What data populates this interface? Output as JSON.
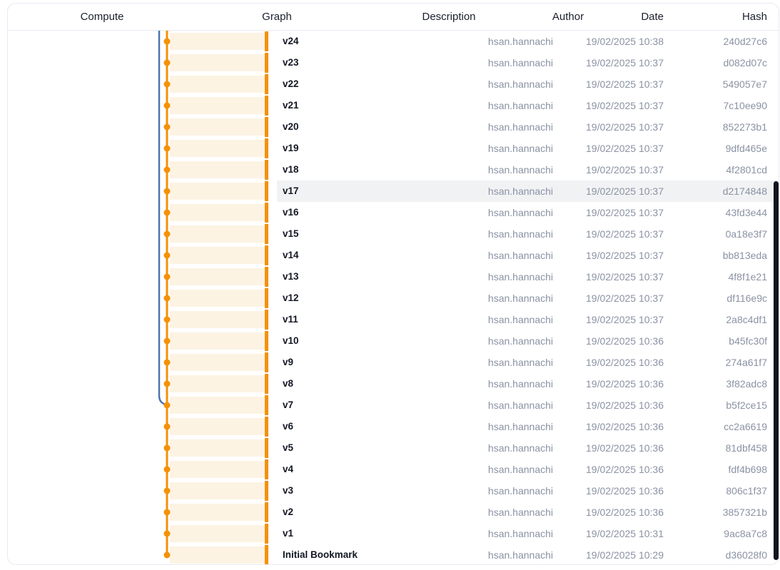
{
  "colors": {
    "orange": "#F59105",
    "cream": "#FCF3E3",
    "blue": "#4E74AE",
    "border": "#E9EAF3",
    "muted": "#8A92A3",
    "highlight": "#F1F2F4",
    "scrollbar": "#10151F"
  },
  "header": {
    "compute": "Compute",
    "graph": "Graph",
    "description": "Description",
    "author": "Author",
    "date": "Date",
    "hash": "Hash"
  },
  "graph_meta": {
    "trunk_color": "orange",
    "second_branch": {
      "starts_at_top": true,
      "merges_at_row": "v7"
    }
  },
  "rows": [
    {
      "label": "v24",
      "description": "",
      "author": "hsan.hannachi",
      "date": "19/02/2025 10:38",
      "hash": "240d27c6",
      "highlighted": false
    },
    {
      "label": "v23",
      "description": "",
      "author": "hsan.hannachi",
      "date": "19/02/2025 10:37",
      "hash": "d082d07c",
      "highlighted": false
    },
    {
      "label": "v22",
      "description": "",
      "author": "hsan.hannachi",
      "date": "19/02/2025 10:37",
      "hash": "549057e7",
      "highlighted": false
    },
    {
      "label": "v21",
      "description": "",
      "author": "hsan.hannachi",
      "date": "19/02/2025 10:37",
      "hash": "7c10ee90",
      "highlighted": false
    },
    {
      "label": "v20",
      "description": "",
      "author": "hsan.hannachi",
      "date": "19/02/2025 10:37",
      "hash": "852273b1",
      "highlighted": false
    },
    {
      "label": "v19",
      "description": "",
      "author": "hsan.hannachi",
      "date": "19/02/2025 10:37",
      "hash": "9dfd465e",
      "highlighted": false
    },
    {
      "label": "v18",
      "description": "",
      "author": "hsan.hannachi",
      "date": "19/02/2025 10:37",
      "hash": "4f2801cd",
      "highlighted": false
    },
    {
      "label": "v17",
      "description": "",
      "author": "hsan.hannachi",
      "date": "19/02/2025 10:37",
      "hash": "d2174848",
      "highlighted": true
    },
    {
      "label": "v16",
      "description": "",
      "author": "hsan.hannachi",
      "date": "19/02/2025 10:37",
      "hash": "43fd3e44",
      "highlighted": false
    },
    {
      "label": "v15",
      "description": "",
      "author": "hsan.hannachi",
      "date": "19/02/2025 10:37",
      "hash": "0a18e3f7",
      "highlighted": false
    },
    {
      "label": "v14",
      "description": "",
      "author": "hsan.hannachi",
      "date": "19/02/2025 10:37",
      "hash": "bb813eda",
      "highlighted": false
    },
    {
      "label": "v13",
      "description": "",
      "author": "hsan.hannachi",
      "date": "19/02/2025 10:37",
      "hash": "4f8f1e21",
      "highlighted": false
    },
    {
      "label": "v12",
      "description": "",
      "author": "hsan.hannachi",
      "date": "19/02/2025 10:37",
      "hash": "df116e9c",
      "highlighted": false
    },
    {
      "label": "v11",
      "description": "",
      "author": "hsan.hannachi",
      "date": "19/02/2025 10:37",
      "hash": "2a8c4df1",
      "highlighted": false
    },
    {
      "label": "v10",
      "description": "",
      "author": "hsan.hannachi",
      "date": "19/02/2025 10:36",
      "hash": "b45fc30f",
      "highlighted": false
    },
    {
      "label": "v9",
      "description": "",
      "author": "hsan.hannachi",
      "date": "19/02/2025 10:36",
      "hash": "274a61f7",
      "highlighted": false
    },
    {
      "label": "v8",
      "description": "",
      "author": "hsan.hannachi",
      "date": "19/02/2025 10:36",
      "hash": "3f82adc8",
      "highlighted": false
    },
    {
      "label": "v7",
      "description": "",
      "author": "hsan.hannachi",
      "date": "19/02/2025 10:36",
      "hash": "b5f2ce15",
      "highlighted": false
    },
    {
      "label": "v6",
      "description": "",
      "author": "hsan.hannachi",
      "date": "19/02/2025 10:36",
      "hash": "cc2a6619",
      "highlighted": false
    },
    {
      "label": "v5",
      "description": "",
      "author": "hsan.hannachi",
      "date": "19/02/2025 10:36",
      "hash": "81dbf458",
      "highlighted": false
    },
    {
      "label": "v4",
      "description": "",
      "author": "hsan.hannachi",
      "date": "19/02/2025 10:36",
      "hash": "fdf4b698",
      "highlighted": false
    },
    {
      "label": "v3",
      "description": "",
      "author": "hsan.hannachi",
      "date": "19/02/2025 10:36",
      "hash": "806c1f37",
      "highlighted": false
    },
    {
      "label": "v2",
      "description": "",
      "author": "hsan.hannachi",
      "date": "19/02/2025 10:36",
      "hash": "3857321b",
      "highlighted": false
    },
    {
      "label": "v1",
      "description": "",
      "author": "hsan.hannachi",
      "date": "19/02/2025 10:31",
      "hash": "9ac8a7c8",
      "highlighted": false
    },
    {
      "label": "Initial Bookmark",
      "description": "",
      "author": "hsan.hannachi",
      "date": "19/02/2025 10:29",
      "hash": "d36028f0",
      "highlighted": false
    }
  ]
}
